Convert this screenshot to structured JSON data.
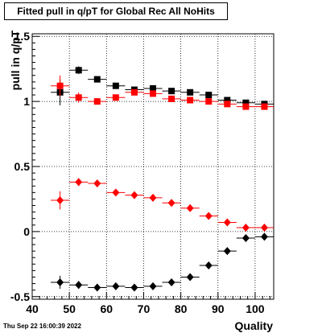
{
  "title": "Fitted pull in q/pT for Global Rec All NoHits",
  "timestamp": "Thu Sep 22 16:00:39 2022",
  "chart_data": {
    "type": "scatter",
    "title": "Fitted pull in q/pT for Global Rec All NoHits",
    "xlabel": "Quality",
    "ylabel": "pull in q/pT",
    "xlim": [
      40,
      105
    ],
    "ylim": [
      -0.52,
      1.52
    ],
    "xticks": [
      40,
      50,
      60,
      70,
      80,
      90,
      100
    ],
    "yticks": [
      -0.5,
      0,
      0.5,
      1,
      1.5
    ],
    "ytick_labels": [
      "-0.5",
      "0",
      "0.5",
      "1",
      "1.5"
    ],
    "grid": true,
    "series": [
      {
        "marker": "square",
        "color": "#000000",
        "points": [
          {
            "x": 47.5,
            "y": 1.07,
            "yerr": 0.1
          },
          {
            "x": 52.5,
            "y": 1.24,
            "yerr": 0.03
          },
          {
            "x": 57.5,
            "y": 1.17,
            "yerr": 0.02
          },
          {
            "x": 62.5,
            "y": 1.12,
            "yerr": 0.015
          },
          {
            "x": 67.5,
            "y": 1.09,
            "yerr": 0.015
          },
          {
            "x": 72.5,
            "y": 1.1,
            "yerr": 0.012
          },
          {
            "x": 77.5,
            "y": 1.08,
            "yerr": 0.01
          },
          {
            "x": 82.5,
            "y": 1.07,
            "yerr": 0.01
          },
          {
            "x": 87.5,
            "y": 1.05,
            "yerr": 0.01
          },
          {
            "x": 92.5,
            "y": 1.01,
            "yerr": 0.008
          },
          {
            "x": 97.5,
            "y": 0.99,
            "yerr": 0.008
          },
          {
            "x": 102.5,
            "y": 0.98,
            "yerr": 0.008
          }
        ]
      },
      {
        "marker": "square",
        "color": "#ff0000",
        "points": [
          {
            "x": 47.5,
            "y": 1.12,
            "yerr": 0.08
          },
          {
            "x": 52.5,
            "y": 1.03,
            "yerr": 0.04
          },
          {
            "x": 57.5,
            "y": 1.0,
            "yerr": 0.025
          },
          {
            "x": 62.5,
            "y": 1.03,
            "yerr": 0.02
          },
          {
            "x": 67.5,
            "y": 1.07,
            "yerr": 0.015
          },
          {
            "x": 72.5,
            "y": 1.06,
            "yerr": 0.012
          },
          {
            "x": 77.5,
            "y": 1.02,
            "yerr": 0.01
          },
          {
            "x": 82.5,
            "y": 1.01,
            "yerr": 0.01
          },
          {
            "x": 87.5,
            "y": 1.0,
            "yerr": 0.01
          },
          {
            "x": 92.5,
            "y": 0.98,
            "yerr": 0.008
          },
          {
            "x": 97.5,
            "y": 0.96,
            "yerr": 0.008
          },
          {
            "x": 102.5,
            "y": 0.96,
            "yerr": 0.008
          }
        ]
      },
      {
        "marker": "diamond",
        "color": "#ff0000",
        "points": [
          {
            "x": 47.5,
            "y": 0.24,
            "yerr": 0.07
          },
          {
            "x": 52.5,
            "y": 0.38,
            "yerr": 0.03
          },
          {
            "x": 57.5,
            "y": 0.37,
            "yerr": 0.02
          },
          {
            "x": 62.5,
            "y": 0.3,
            "yerr": 0.015
          },
          {
            "x": 67.5,
            "y": 0.28,
            "yerr": 0.012
          },
          {
            "x": 72.5,
            "y": 0.26,
            "yerr": 0.01
          },
          {
            "x": 77.5,
            "y": 0.22,
            "yerr": 0.01
          },
          {
            "x": 82.5,
            "y": 0.18,
            "yerr": 0.008
          },
          {
            "x": 87.5,
            "y": 0.12,
            "yerr": 0.008
          },
          {
            "x": 92.5,
            "y": 0.07,
            "yerr": 0.006
          },
          {
            "x": 97.5,
            "y": 0.03,
            "yerr": 0.005
          },
          {
            "x": 102.5,
            "y": 0.03,
            "yerr": 0.005
          }
        ]
      },
      {
        "marker": "diamond",
        "color": "#000000",
        "points": [
          {
            "x": 47.5,
            "y": -0.39,
            "yerr": 0.05
          },
          {
            "x": 52.5,
            "y": -0.41,
            "yerr": 0.03
          },
          {
            "x": 57.5,
            "y": -0.43,
            "yerr": 0.02
          },
          {
            "x": 62.5,
            "y": -0.42,
            "yerr": 0.015
          },
          {
            "x": 67.5,
            "y": -0.43,
            "yerr": 0.012
          },
          {
            "x": 72.5,
            "y": -0.42,
            "yerr": 0.01
          },
          {
            "x": 77.5,
            "y": -0.39,
            "yerr": 0.01
          },
          {
            "x": 82.5,
            "y": -0.35,
            "yerr": 0.008
          },
          {
            "x": 87.5,
            "y": -0.26,
            "yerr": 0.008
          },
          {
            "x": 92.5,
            "y": -0.15,
            "yerr": 0.006
          },
          {
            "x": 97.5,
            "y": -0.05,
            "yerr": 0.005
          },
          {
            "x": 102.5,
            "y": -0.04,
            "yerr": 0.005
          }
        ]
      }
    ]
  }
}
